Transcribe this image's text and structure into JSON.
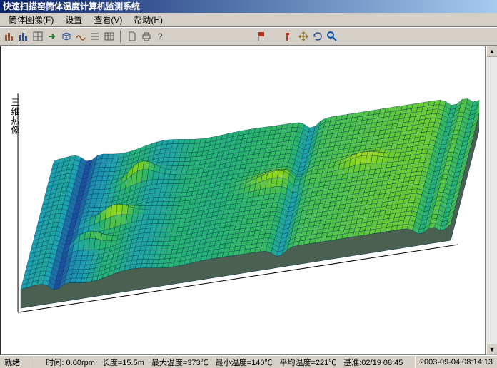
{
  "title": "快速扫描窑筒体温度计算机监测系统",
  "menu": {
    "items": [
      "筒体图像(F)",
      "设置",
      "查看(V)",
      "帮助(H)"
    ]
  },
  "toolbar": {
    "group1": [
      "btn1",
      "btn2",
      "btn3",
      "btn4",
      "btn5",
      "btn6",
      "btn7",
      "btn8"
    ],
    "group2": [
      "doc",
      "print",
      "help"
    ],
    "group3": [
      "tool-red"
    ],
    "group4": [
      "tool-a",
      "tool-b",
      "tool-c",
      "tool-zoom"
    ]
  },
  "plot": {
    "y_label": "三维热像",
    "type": "3d-surface",
    "nx": 80,
    "ny": 30,
    "color_low": "#1e4fa0",
    "color_mid1": "#1ea0b4",
    "color_mid2": "#28b46e",
    "color_high": "#7ed221",
    "color_peak": "#d2e621",
    "grid_color": "#003050",
    "bg": "#ffffff",
    "axis_color": "#000000",
    "side_color": "#4a6050"
  },
  "status": {
    "ready": "就绪",
    "time": "时间: 0.00rpm",
    "len": "长度=15.5m",
    "max": "最大温度=373℃",
    "min": "最小温度=140℃",
    "avg": "平均温度=221℃",
    "base": "基准:02/19 08:45",
    "datetime": "2003-09-04  08:14:13"
  },
  "icon_colors": {
    "c1": "#a05028",
    "c2": "#2850a0",
    "c3": "#505050",
    "c4": "#287828",
    "doc": "#505050",
    "print": "#505050",
    "help": "#505050",
    "red": "#c03020",
    "ta": "#c03020",
    "tb": "#806000",
    "tc": "#2850a0",
    "zoom": "#0050c0"
  }
}
